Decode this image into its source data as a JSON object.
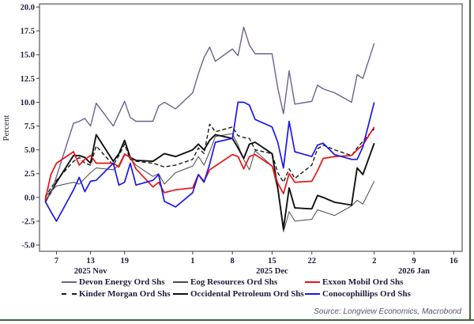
{
  "frame": {
    "border_color": "#42613f",
    "plot_frame_color": "#808080",
    "tick_color": "#404040",
    "text_color": "#1c1c3a"
  },
  "source": {
    "text": "Source: Longview Economics, Macrobond"
  },
  "chart_data": {
    "type": "line",
    "title": "",
    "ylabel": "Percent",
    "xlabel": "",
    "ylim": [
      -5.0,
      20.0
    ],
    "grid": false,
    "legend_position": "bottom",
    "yticks": [
      {
        "v": 20.0,
        "label": "20.0"
      },
      {
        "v": 17.5,
        "label": "17.5"
      },
      {
        "v": 15.0,
        "label": "15.0"
      },
      {
        "v": 12.5,
        "label": "12.5"
      },
      {
        "v": 10.0,
        "label": "10.0"
      },
      {
        "v": 7.5,
        "label": "7.5"
      },
      {
        "v": 5.0,
        "label": "5.0"
      },
      {
        "v": 2.5,
        "label": "2.5"
      },
      {
        "v": 0.0,
        "label": "0.0"
      },
      {
        "v": -2.5,
        "label": "-2.5"
      },
      {
        "v": -5.0,
        "label": "-5.0"
      }
    ],
    "xticks": [
      {
        "d": 3,
        "label": "7"
      },
      {
        "d": 9,
        "label": "13"
      },
      {
        "d": 15,
        "label": "19"
      },
      {
        "d": 27,
        "label": "1"
      },
      {
        "d": 34,
        "label": "8"
      },
      {
        "d": 41,
        "label": "15"
      },
      {
        "d": 48,
        "label": "22"
      },
      {
        "d": 59,
        "label": "2"
      },
      {
        "d": 66,
        "label": "9"
      },
      {
        "d": 73,
        "label": "16"
      }
    ],
    "month_ticks": [
      {
        "d": 9,
        "label": "2025 Nov"
      },
      {
        "d": 41,
        "label": "2025 Dec"
      },
      {
        "d": 66,
        "label": "2026 Jan"
      }
    ],
    "x_domain": [
      0,
      74.5
    ],
    "x_days": [
      1,
      2,
      3,
      6,
      7,
      8,
      9,
      10,
      13,
      14,
      15,
      16,
      17,
      20,
      21,
      22,
      24,
      27,
      28,
      29,
      30,
      31,
      34,
      35,
      36,
      37,
      38,
      41,
      42,
      43,
      44,
      45,
      48,
      49,
      50,
      52,
      55,
      56,
      57,
      59
    ],
    "series": [
      {
        "name": "Devon Energy Ord Shs",
        "color": "#6e5f91",
        "dashed": false,
        "values": [
          -0.3,
          0.4,
          2.2,
          7.8,
          8.0,
          8.3,
          7.5,
          9.9,
          7.5,
          8.8,
          10.1,
          8.4,
          8.0,
          8.0,
          9.6,
          10.0,
          9.3,
          11.0,
          13.0,
          14.7,
          15.8,
          14.3,
          15.6,
          14.9,
          17.9,
          16.0,
          15.1,
          15.1,
          11.5,
          8.8,
          13.3,
          9.8,
          10.1,
          11.8,
          11.4,
          11.0,
          10.0,
          12.9,
          12.5,
          16.2
        ]
      },
      {
        "name": "Eog Resources Ord Shs",
        "color": "#4a4a4a",
        "dashed": false,
        "values": [
          0.2,
          0.6,
          1.2,
          1.6,
          1.4,
          2.0,
          2.6,
          3.1,
          2.9,
          3.4,
          4.6,
          4.1,
          3.4,
          2.2,
          2.5,
          1.4,
          2.6,
          3.3,
          4.3,
          3.4,
          4.8,
          6.4,
          6.7,
          5.5,
          4.0,
          2.9,
          4.9,
          3.3,
          0.8,
          -3.6,
          -1.5,
          -2.5,
          -2.3,
          -1.3,
          -1.5,
          -1.9,
          -0.9,
          -0.3,
          -0.7,
          1.7
        ]
      },
      {
        "name": "Exxon Mobil Ord Shs",
        "color": "#e81313",
        "dashed": false,
        "values": [
          -0.3,
          2.4,
          3.6,
          4.8,
          3.4,
          4.0,
          4.4,
          3.6,
          3.6,
          3.2,
          4.5,
          4.3,
          3.0,
          1.1,
          1.6,
          0.5,
          0.8,
          1.0,
          2.4,
          1.7,
          2.9,
          3.3,
          4.5,
          4.3,
          3.0,
          4.3,
          4.5,
          3.3,
          1.5,
          0.4,
          2.5,
          1.6,
          1.7,
          2.8,
          4.1,
          4.3,
          4.4,
          5.0,
          5.5,
          7.4
        ]
      },
      {
        "name": "Kinder Morgan Ord Shs",
        "color": "#1a1a1a",
        "dashed": true,
        "values": [
          0.0,
          1.0,
          1.8,
          3.8,
          4.2,
          3.6,
          3.4,
          5.4,
          3.4,
          4.4,
          5.6,
          4.0,
          3.8,
          3.6,
          3.4,
          3.2,
          3.4,
          4.0,
          5.2,
          4.6,
          7.7,
          6.9,
          7.4,
          6.5,
          6.3,
          6.2,
          5.0,
          4.6,
          2.6,
          1.6,
          3.0,
          2.0,
          3.4,
          5.1,
          5.5,
          5.0,
          4.4,
          5.2,
          5.9,
          7.2
        ]
      },
      {
        "name": "Occidental Petroleum Ord Shs",
        "color": "#111111",
        "dashed": false,
        "values": [
          -0.5,
          0.6,
          1.6,
          4.4,
          4.4,
          4.2,
          3.6,
          6.6,
          3.8,
          4.6,
          6.0,
          4.2,
          3.9,
          3.8,
          4.2,
          4.6,
          4.3,
          5.0,
          5.6,
          5.0,
          6.0,
          6.6,
          6.2,
          5.2,
          4.1,
          5.6,
          5.8,
          4.6,
          1.0,
          -3.3,
          1.0,
          -1.1,
          -1.2,
          0.2,
          0.0,
          -0.5,
          -0.8,
          3.1,
          2.4,
          5.7
        ]
      },
      {
        "name": "Conocophillips Ord Shs",
        "color": "#1b16ec",
        "dashed": false,
        "values": [
          -0.4,
          -1.5,
          -2.5,
          0.8,
          2.1,
          0.6,
          1.7,
          1.8,
          3.6,
          1.3,
          1.6,
          3.6,
          1.3,
          1.8,
          2.4,
          -0.4,
          -1.0,
          0.5,
          2.4,
          1.6,
          3.5,
          5.8,
          6.2,
          10.0,
          10.0,
          9.7,
          8.2,
          7.4,
          5.8,
          3.1,
          8.0,
          4.8,
          4.3,
          5.5,
          5.7,
          4.5,
          4.0,
          4.0,
          5.3,
          10.0
        ]
      }
    ]
  }
}
